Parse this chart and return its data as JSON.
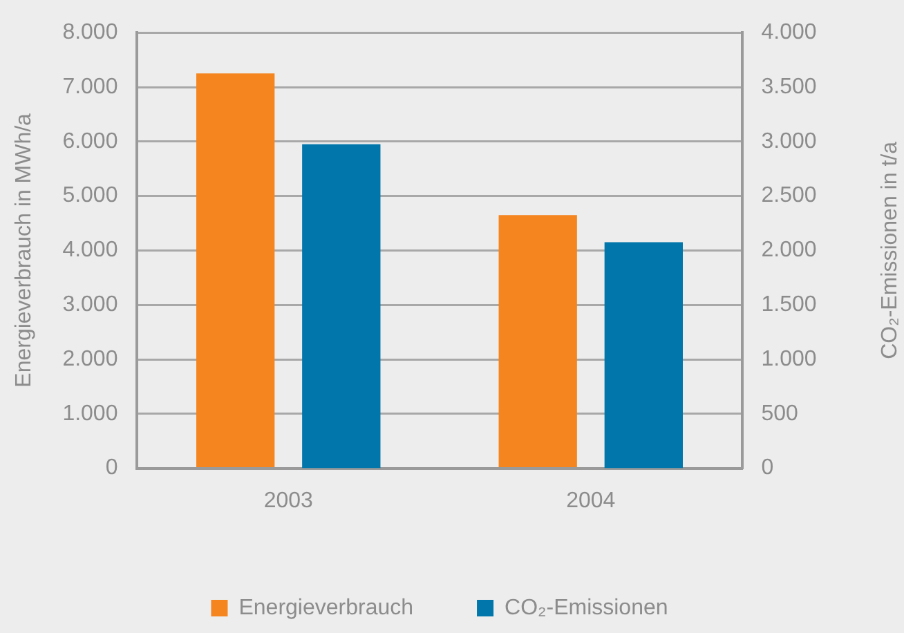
{
  "chart_data": {
    "type": "bar",
    "categories": [
      "2003",
      "2004"
    ],
    "series": [
      {
        "name": "Energieverbrauch",
        "color": "#f5851f",
        "values": [
          7250,
          4650
        ]
      },
      {
        "name": "CO₂-Emissionen",
        "color": "#0076aa",
        "values": [
          2975,
          2075
        ],
        "axis": "y2"
      }
    ],
    "ylabel": "Energieverbrauch in MWh/a",
    "y2label": "CO₂-Emissionen in t/a",
    "ylim": [
      0,
      8000
    ],
    "yticks": [
      {
        "value": 0,
        "label": "0"
      },
      {
        "value": 1000,
        "label": "1.000"
      },
      {
        "value": 2000,
        "label": "2.000"
      },
      {
        "value": 3000,
        "label": "3.000"
      },
      {
        "value": 4000,
        "label": "4.000"
      },
      {
        "value": 5000,
        "label": "5.000"
      },
      {
        "value": 6000,
        "label": "6.000"
      },
      {
        "value": 7000,
        "label": "7.000"
      },
      {
        "value": 8000,
        "label": "8.000"
      }
    ],
    "y2lim": [
      0,
      4000
    ],
    "y2ticks": [
      {
        "value": 0,
        "label": "0"
      },
      {
        "value": 500,
        "label": "500"
      },
      {
        "value": 1000,
        "label": "1.000"
      },
      {
        "value": 1500,
        "label": "1.500"
      },
      {
        "value": 2000,
        "label": "2.000"
      },
      {
        "value": 2500,
        "label": "2.500"
      },
      {
        "value": 3000,
        "label": "3.000"
      },
      {
        "value": 3500,
        "label": "3.500"
      },
      {
        "value": 4000,
        "label": "4.000"
      }
    ],
    "grid": "y",
    "legend": "bottom"
  }
}
